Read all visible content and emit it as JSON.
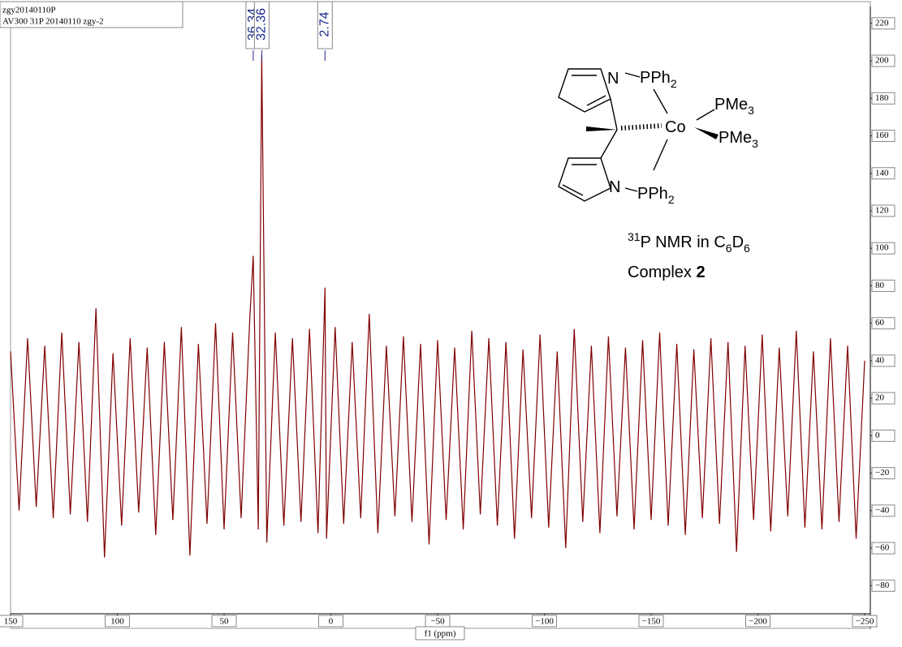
{
  "chart_data": {
    "type": "line",
    "header": [
      "zgy20140110P",
      "AV300   31P   20140110   zgy-2"
    ],
    "x_label": "f1 (ppm)",
    "color": "#800000",
    "peak_labels": [
      36.34,
      32.36,
      2.74
    ],
    "xlim": [
      150,
      -250
    ],
    "xticks": [
      150,
      100,
      50,
      0,
      {
        "value": -50,
        "label": "−50"
      },
      {
        "value": -100,
        "label": "−100"
      },
      {
        "value": -150,
        "label": "−150"
      },
      {
        "value": -200,
        "label": "−200"
      },
      {
        "value": -250,
        "label": "−250"
      }
    ],
    "ylim": [
      -95,
      229
    ],
    "yticks": [
      {
        "value": -80,
        "label": "−80"
      },
      {
        "value": -60,
        "label": "−60"
      },
      {
        "value": -40,
        "label": "−40"
      },
      {
        "value": -20,
        "label": "−20"
      },
      0,
      20,
      40,
      60,
      80,
      100,
      120,
      140,
      160,
      180,
      200,
      220
    ],
    "x": [
      150,
      146,
      142,
      138,
      134,
      130,
      126,
      122,
      118,
      114,
      110,
      106,
      102,
      98,
      94,
      90,
      86,
      82,
      78,
      74,
      70,
      66,
      62,
      58,
      54,
      50,
      46,
      42,
      38,
      36.34,
      34,
      32.36,
      30,
      26,
      22,
      18,
      14,
      10,
      6,
      2.74,
      2,
      -2,
      -6,
      -10,
      -14,
      -18,
      -22,
      -26,
      -30,
      -34,
      -38,
      -42,
      -46,
      -50,
      -54,
      -58,
      -62,
      -66,
      -70,
      -74,
      -78,
      -82,
      -86,
      -90,
      -94,
      -98,
      -102,
      -106,
      -110,
      -114,
      -118,
      -122,
      -126,
      -130,
      -134,
      -138,
      -142,
      -146,
      -150,
      -154,
      -158,
      -162,
      -166,
      -170,
      -174,
      -178,
      -182,
      -186,
      -190,
      -194,
      -198,
      -202,
      -206,
      -210,
      -214,
      -218,
      -222,
      -226,
      -230,
      -234,
      -238,
      -242,
      -246,
      -250
    ],
    "values": [
      45,
      -40,
      52,
      -38,
      48,
      -44,
      55,
      -42,
      50,
      -46,
      68,
      -65,
      44,
      -48,
      52,
      -41,
      47,
      -53,
      50,
      -45,
      58,
      -64,
      49,
      -47,
      60,
      -50,
      55,
      -44,
      62,
      96,
      -50,
      203,
      -57,
      55,
      -48,
      52,
      -46,
      57,
      -52,
      79,
      -55,
      58,
      -47,
      50,
      -44,
      65,
      -52,
      48,
      -43,
      53,
      -46,
      49,
      -58,
      51,
      -45,
      47,
      -50,
      56,
      -42,
      52,
      -48,
      50,
      -55,
      46,
      -44,
      54,
      -49,
      45,
      -60,
      57,
      -46,
      48,
      -52,
      53,
      -43,
      47,
      -50,
      51,
      -45,
      55,
      -48,
      49,
      -53,
      46,
      -44,
      52,
      -47,
      50,
      -62,
      48,
      -45,
      54,
      -51,
      47,
      -43,
      56,
      -49,
      45,
      -50,
      52,
      -46,
      48,
      -55,
      40
    ],
    "molecule": {
      "n_top": "N",
      "pph2_top": [
        "PPh",
        "2"
      ],
      "co": "Co",
      "pme3_a": [
        "PMe",
        "3"
      ],
      "pme3_b": [
        "PMe",
        "3"
      ],
      "n_bottom": "N",
      "pph2_bottom": [
        "PPh",
        "2"
      ]
    },
    "caption_1": [
      "31",
      "P NMR in C",
      "6",
      "D",
      "6"
    ],
    "caption_2": [
      "Complex ",
      "2"
    ]
  }
}
